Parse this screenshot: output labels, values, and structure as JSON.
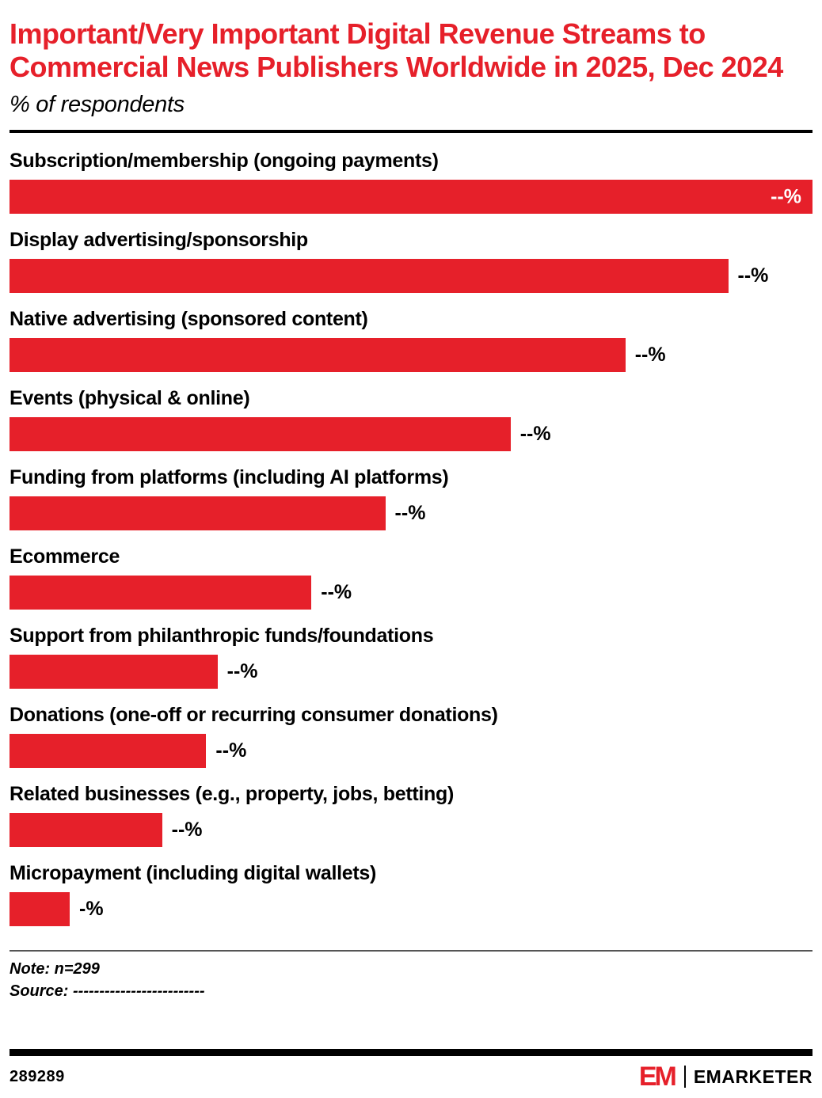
{
  "title": "Important/Very Important Digital Revenue Streams to Commercial News Publishers Worldwide in 2025, Dec 2024",
  "subtitle": "% of respondents",
  "note": "Note: n=299",
  "source": "Source: -------------------------",
  "footer": {
    "chart_id": "289289",
    "logo_mark": "EM",
    "brand": "EMARKETER"
  },
  "colors": {
    "accent_red": "#e6202a",
    "text_black": "#000000",
    "bar_value_inside": "#ffffff"
  },
  "chart_data": {
    "type": "bar",
    "orientation": "horizontal",
    "title": "Important/Very Important Digital Revenue Streams to Commercial News Publishers Worldwide in 2025, Dec 2024",
    "subtitle": "% of respondents",
    "xlabel": "",
    "ylabel": "",
    "xlim": [
      0,
      100
    ],
    "grid": false,
    "legend": false,
    "bar_color": "#e6202a",
    "categories": [
      "Subscription/membership (ongoing payments)",
      "Display advertising/sponsorship",
      "Native advertising (sponsored content)",
      "Events (physical & online)",
      "Funding from platforms (including AI platforms)",
      "Ecommerce",
      "Support from philanthropic funds/foundations",
      "Donations (one-off or recurring consumer donations)",
      "Related businesses (e.g., property, jobs, betting)",
      "Micropayment (including digital wallets)"
    ],
    "values": [
      null,
      null,
      null,
      null,
      null,
      null,
      null,
      null,
      null,
      null
    ],
    "value_labels": [
      "--%",
      "--%",
      "--%",
      "--%",
      "--%",
      "--%",
      "--%",
      "--%",
      "--%",
      "-%"
    ],
    "bar_length_pct": [
      100,
      89.5,
      76.7,
      62.4,
      46.8,
      37.6,
      25.9,
      24.5,
      19,
      7.5
    ],
    "value_label_inside": [
      true,
      false,
      false,
      false,
      false,
      false,
      false,
      false,
      false,
      false
    ]
  }
}
